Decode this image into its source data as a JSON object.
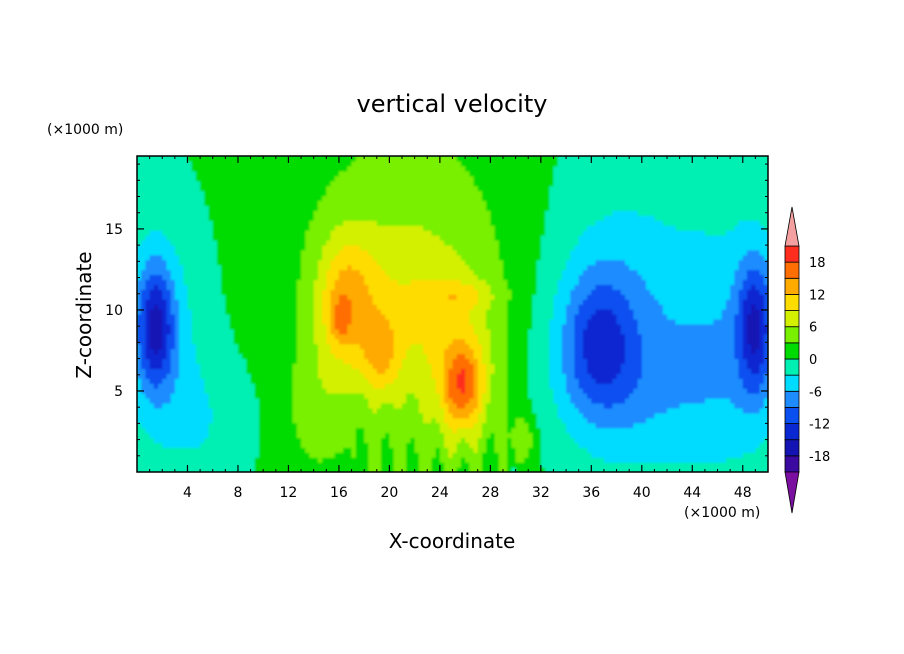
{
  "chart_data": {
    "type": "heatmap",
    "title": "vertical velocity",
    "xlabel": "X-coordinate",
    "ylabel": "Z-coordinate",
    "x_unit": "(×1000 m)",
    "y_unit": "(×1000 m)",
    "xlim": [
      0,
      50
    ],
    "ylim": [
      0,
      19.5
    ],
    "x_ticks": [
      4,
      8,
      12,
      16,
      20,
      24,
      28,
      32,
      36,
      40,
      44,
      48
    ],
    "x_tick_labels": [
      "4",
      "8",
      "12",
      "16",
      "20",
      "24",
      "28",
      "32",
      "36",
      "40",
      "44",
      "48"
    ],
    "y_ticks": [
      5,
      10,
      15
    ],
    "y_tick_labels": [
      "5",
      "10",
      "15"
    ],
    "colorbar": {
      "levels": [
        -21,
        -18,
        -15,
        -12,
        -9,
        -6,
        -3,
        0,
        3,
        6,
        9,
        12,
        15,
        18,
        21
      ],
      "colors": [
        "#7a0fa0",
        "#3b0aa0",
        "#1414b4",
        "#0a28d2",
        "#0a50f0",
        "#1e8cff",
        "#00dcff",
        "#00f0b4",
        "#00dc00",
        "#78f000",
        "#d2f000",
        "#ffdc00",
        "#ffaa00",
        "#ff6e00",
        "#ff2d1e",
        "#f5a0a0"
      ],
      "labels": [
        "18",
        "12",
        "6",
        "0",
        "-6",
        "-12",
        "-18"
      ],
      "label_values": [
        18,
        12,
        6,
        0,
        -6,
        -12,
        -18
      ]
    },
    "features": [
      {
        "x": 16.5,
        "z": 10.5,
        "w": 9,
        "sx": 1.6,
        "sz": 2.9
      },
      {
        "x": 16.1,
        "z": 9.4,
        "w": 4,
        "sx": 0.5,
        "sz": 0.9
      },
      {
        "x": 19.3,
        "z": 7.2,
        "w": 6,
        "sx": 1.0,
        "sz": 1.8
      },
      {
        "x": 25.8,
        "z": 5.3,
        "w": 10,
        "sx": 1.1,
        "sz": 1.8
      },
      {
        "x": 26.0,
        "z": 6.0,
        "w": 5,
        "sx": 2.0,
        "sz": 3.5
      },
      {
        "x": 30.5,
        "z": 2.0,
        "w": 5,
        "sx": 0.7,
        "sz": 1.1
      },
      {
        "x": 25.5,
        "z": 11.0,
        "w": 4,
        "sx": 2.0,
        "sz": 0.6
      },
      {
        "x": 21.0,
        "z": 9.0,
        "w": 4,
        "sx": 3.5,
        "sz": 4.0
      },
      {
        "x": 14.0,
        "z": 4.0,
        "w": 3,
        "sx": 1.5,
        "sz": 2.5
      },
      {
        "x": 22.0,
        "z": 12.0,
        "w": 3,
        "sx": 6.0,
        "sz": 5.0
      },
      {
        "x": 1.5,
        "z": 9.0,
        "w": -12,
        "sx": 1.0,
        "sz": 2.6
      },
      {
        "x": 1.5,
        "z": 9.0,
        "w": -5,
        "sx": 2.5,
        "sz": 4.5
      },
      {
        "x": 49.0,
        "z": 9.0,
        "w": -12,
        "sx": 1.0,
        "sz": 3.0
      },
      {
        "x": 47.0,
        "z": 8.0,
        "w": -4,
        "sx": 3.0,
        "sz": 5.0
      },
      {
        "x": 36.5,
        "z": 8.0,
        "w": -8,
        "sx": 2.0,
        "sz": 3.0
      },
      {
        "x": 38.0,
        "z": 9.5,
        "w": -5,
        "sx": 4.0,
        "sz": 5.0
      },
      {
        "x": 40.0,
        "z": 5.0,
        "w": -3,
        "sx": 5.0,
        "sz": 3.0
      },
      {
        "x": 5.0,
        "z": 3.0,
        "w": -3,
        "sx": 3.0,
        "sz": 3.0
      }
    ]
  }
}
